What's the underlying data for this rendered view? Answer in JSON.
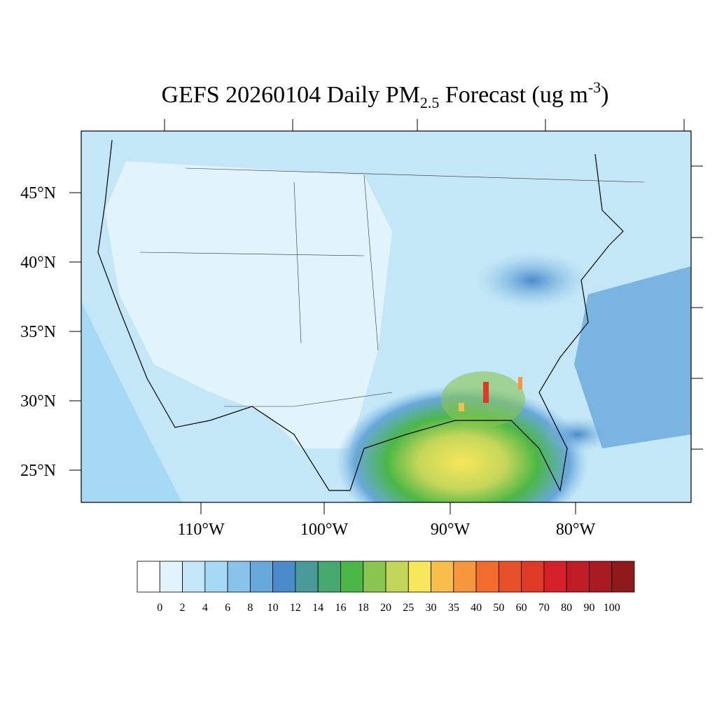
{
  "map": {
    "title": {
      "main": "GEFS 20260104 Daily PM",
      "subscript": "2.5",
      "middle": " Forecast (ug m",
      "superscript": "-3",
      "end": ")"
    },
    "lat_labels": [
      "45°N",
      "40°N",
      "35°N",
      "30°N",
      "25°N"
    ],
    "lon_labels": [
      "110°W",
      "100°W",
      "90°W",
      "80°W"
    ],
    "colorbar": {
      "levels": [
        0,
        2,
        4,
        6,
        8,
        10,
        12,
        14,
        16,
        18,
        20,
        25,
        30,
        35,
        40,
        50,
        60,
        70,
        80,
        90,
        100
      ],
      "colors": [
        "#ffffff",
        "#e1f3fb",
        "#c4e7f7",
        "#a6daf4",
        "#88c3e9",
        "#68a8db",
        "#4a8bca",
        "#4a9a9a",
        "#46a76f",
        "#4bb747",
        "#88c650",
        "#c4d65a",
        "#f7e75b",
        "#f7be4b",
        "#f6973e",
        "#f26c2e",
        "#e8502a",
        "#de3a27",
        "#d32029",
        "#be1d26",
        "#a81b22",
        "#8f1a1c"
      ]
    }
  }
}
